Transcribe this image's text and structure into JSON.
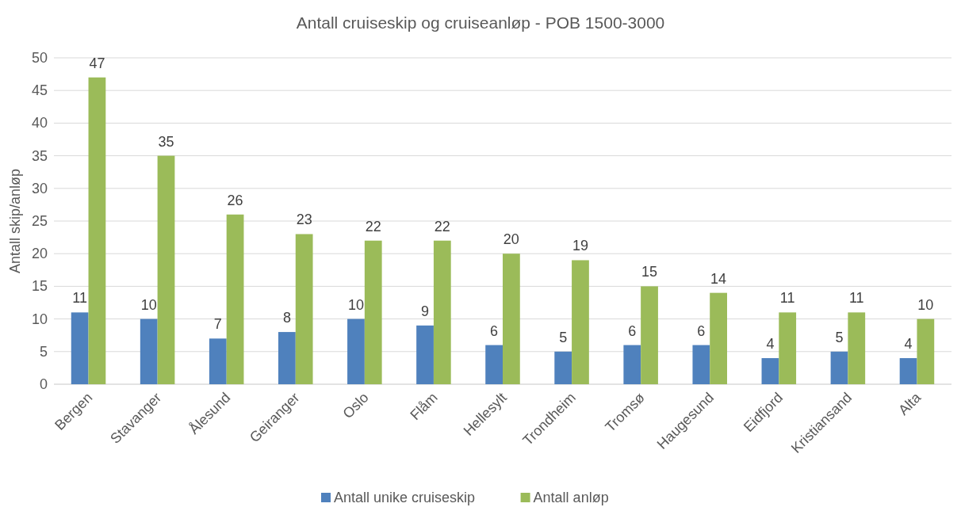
{
  "chart_data": {
    "type": "bar",
    "title": "Antall cruiseskip og cruiseanløp - POB 1500-3000",
    "ylabel": "Antall skip/anløp",
    "categories": [
      "Bergen",
      "Stavanger",
      "Ålesund",
      "Geiranger",
      "Oslo",
      "Flåm",
      "Hellesylt",
      "Trondheim",
      "Tromsø",
      "Haugesund",
      "Eidfjord",
      "Kristiansand",
      "Alta"
    ],
    "series": [
      {
        "name": "Antall unike cruiseskip",
        "color": "#4f81bd",
        "values": [
          11,
          10,
          7,
          8,
          10,
          9,
          6,
          5,
          6,
          6,
          4,
          5,
          4
        ]
      },
      {
        "name": "Antall anløp",
        "color": "#9bbb59",
        "values": [
          47,
          35,
          26,
          23,
          22,
          22,
          20,
          19,
          15,
          14,
          11,
          11,
          10
        ]
      }
    ],
    "ylim": [
      0,
      50
    ],
    "yticks": [
      0,
      5,
      10,
      15,
      20,
      25,
      30,
      35,
      40,
      45,
      50
    ],
    "grid": "y",
    "legend": "bottom",
    "data_labels": true
  }
}
